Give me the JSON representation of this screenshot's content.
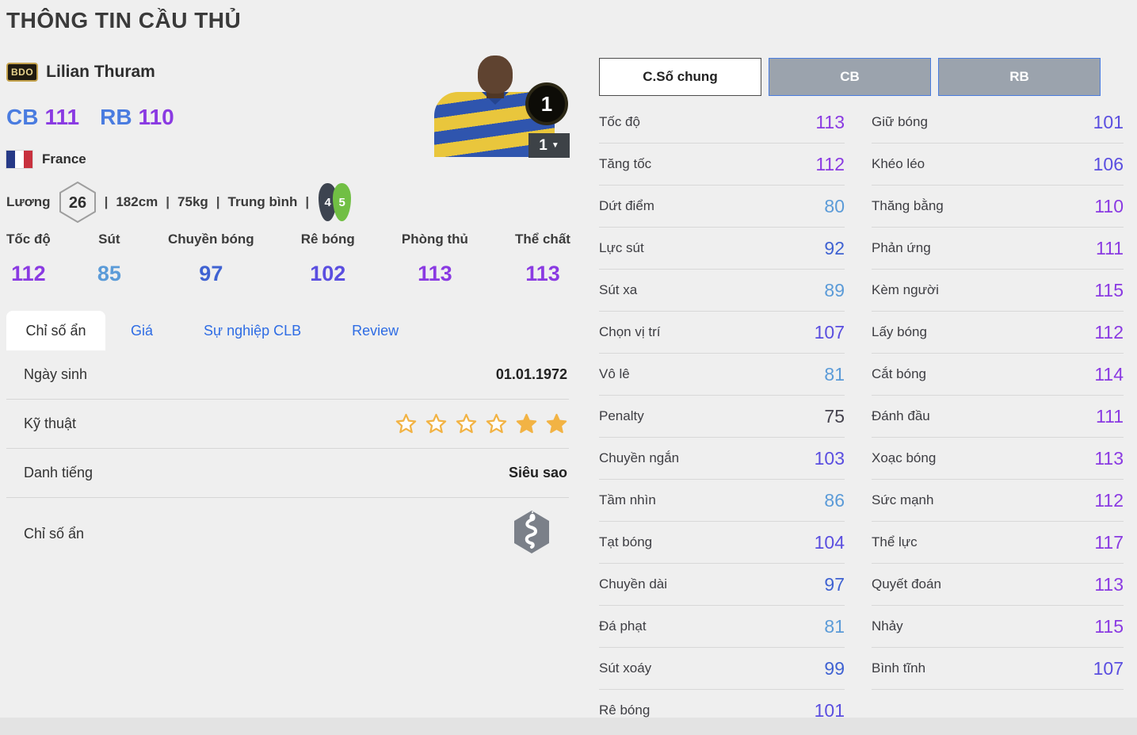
{
  "page": {
    "title": "THÔNG TIN CẦU THỦ"
  },
  "colors": {
    "page_bg": "#efefef",
    "accent_blue": "#2e6ce4",
    "position_label_blue": "#4a7ce0",
    "star_amber": "#f2b344",
    "weak_foot_bg": "#3d4450",
    "skill_foot_bg": "#71bf44",
    "flag_blue": "#273a87",
    "flag_white": "#ffffff",
    "flag_red": "#c8313e",
    "rating_low": "#45434e",
    "rating_80": "#5b9bd8",
    "rating_90": "#3f62d2",
    "rating_100": "#5a4ee0",
    "rating_110": "#8a3ae2"
  },
  "player": {
    "card_badge": "BDO",
    "name": "Lilian Thuram",
    "positions": [
      {
        "label": "CB",
        "value": 111
      },
      {
        "label": "RB",
        "value": 110
      }
    ],
    "nation": "France",
    "salary_label": "Lương",
    "salary": "26",
    "bio_segments": [
      "182cm",
      "75kg",
      "Trung bình"
    ],
    "separator": "|",
    "weak_foot": "4",
    "skill_foot": "5",
    "level_badge": "1",
    "level_selected": "1",
    "dropdown_arrow": "▼"
  },
  "summary_stats": [
    {
      "label": "Tốc độ",
      "value": 112
    },
    {
      "label": "Sút",
      "value": 85
    },
    {
      "label": "Chuyền bóng",
      "value": 97
    },
    {
      "label": "Rê bóng",
      "value": 102
    },
    {
      "label": "Phòng thủ",
      "value": 113
    },
    {
      "label": "Thể chất",
      "value": 113
    }
  ],
  "tabs": {
    "active": "Chỉ số ẩn",
    "links": [
      "Giá",
      "Sự nghiệp CLB",
      "Review"
    ]
  },
  "info_rows": [
    {
      "type": "text",
      "label": "Ngày sinh",
      "value": "01.01.1972"
    },
    {
      "type": "stars",
      "label": "Kỹ thuật",
      "stars_outline": 4,
      "stars_filled": 2,
      "stars_total": 6
    },
    {
      "type": "text",
      "label": "Danh tiếng",
      "value": "Siêu sao"
    },
    {
      "type": "icon",
      "label": "Chỉ số ẩn",
      "icon": "snake-hexagon-icon"
    }
  ],
  "detail_panel": {
    "tabs": [
      {
        "label": "C.Số chung",
        "active": true
      },
      {
        "label": "CB",
        "active": false
      },
      {
        "label": "RB",
        "active": false
      }
    ],
    "left_stats": [
      {
        "label": "Tốc độ",
        "value": 113
      },
      {
        "label": "Tăng tốc",
        "value": 112
      },
      {
        "label": "Dứt điểm",
        "value": 80
      },
      {
        "label": "Lực sút",
        "value": 92
      },
      {
        "label": "Sút xa",
        "value": 89
      },
      {
        "label": "Chọn vị trí",
        "value": 107
      },
      {
        "label": "Vô lê",
        "value": 81
      },
      {
        "label": "Penalty",
        "value": 75
      },
      {
        "label": "Chuyền ngắn",
        "value": 103
      },
      {
        "label": "Tầm nhìn",
        "value": 86
      },
      {
        "label": "Tạt bóng",
        "value": 104
      },
      {
        "label": "Chuyền dài",
        "value": 97
      },
      {
        "label": "Đá phạt",
        "value": 81
      },
      {
        "label": "Sút xoáy",
        "value": 99
      },
      {
        "label": "Rê bóng",
        "value": 101
      }
    ],
    "right_stats": [
      {
        "label": "Giữ bóng",
        "value": 101
      },
      {
        "label": "Khéo léo",
        "value": 106
      },
      {
        "label": "Thăng bằng",
        "value": 110
      },
      {
        "label": "Phản ứng",
        "value": 111
      },
      {
        "label": "Kèm người",
        "value": 115
      },
      {
        "label": "Lấy bóng",
        "value": 112
      },
      {
        "label": "Cắt bóng",
        "value": 114
      },
      {
        "label": "Đánh đầu",
        "value": 111
      },
      {
        "label": "Xoạc bóng",
        "value": 113
      },
      {
        "label": "Sức mạnh",
        "value": 112
      },
      {
        "label": "Thể lực",
        "value": 117
      },
      {
        "label": "Quyết đoán",
        "value": 113
      },
      {
        "label": "Nhảy",
        "value": 115
      },
      {
        "label": "Bình tĩnh",
        "value": 107
      }
    ]
  }
}
